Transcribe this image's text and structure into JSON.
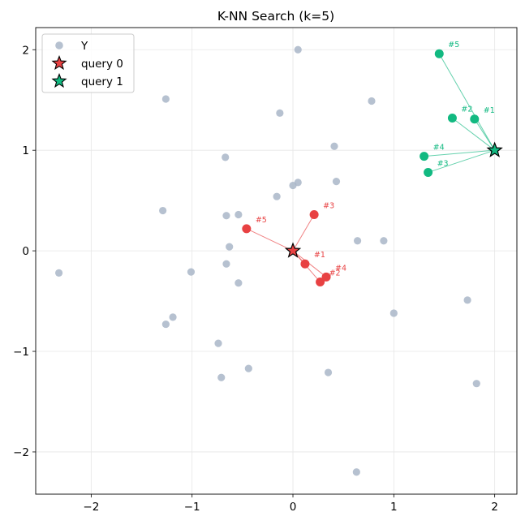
{
  "chart_data": {
    "type": "scatter",
    "title": "K-NN Search (k=5)",
    "xlabel": "",
    "ylabel": "",
    "xlim": [
      -2.55,
      2.22
    ],
    "ylim": [
      -2.42,
      2.22
    ],
    "xticks": [
      -2,
      -1,
      0,
      1,
      2
    ],
    "yticks": [
      -2,
      -1,
      0,
      1,
      2
    ],
    "xtick_labels": [
      "−2",
      "−1",
      "0",
      "1",
      "2"
    ],
    "ytick_labels": [
      "−2",
      "−1",
      "0",
      "1",
      "2"
    ],
    "grid": true,
    "legend_position": "top-left",
    "legend": [
      {
        "label": "Y",
        "marker": "circle",
        "color": "#a9b6c8"
      },
      {
        "label": "query 0",
        "marker": "star",
        "color": "#e84142"
      },
      {
        "label": "query 1",
        "marker": "star",
        "color": "#12b981"
      }
    ],
    "colors": {
      "Y": "#a9b6c8",
      "query0": "#e84142",
      "query1": "#12b981"
    },
    "points_Y": [
      [
        0.05,
        2.0
      ],
      [
        -1.26,
        1.51
      ],
      [
        0.78,
        1.49
      ],
      [
        -0.13,
        1.37
      ],
      [
        0.41,
        1.04
      ],
      [
        -0.67,
        0.93
      ],
      [
        0.43,
        0.69
      ],
      [
        0.05,
        0.68
      ],
      [
        0.0,
        0.65
      ],
      [
        -0.16,
        0.54
      ],
      [
        -1.29,
        0.4
      ],
      [
        -0.66,
        0.35
      ],
      [
        -0.54,
        0.36
      ],
      [
        -0.63,
        0.04
      ],
      [
        0.64,
        0.1
      ],
      [
        0.9,
        0.1
      ],
      [
        -2.32,
        -0.22
      ],
      [
        -1.01,
        -0.21
      ],
      [
        -0.66,
        -0.13
      ],
      [
        -0.54,
        -0.32
      ],
      [
        1.0,
        -0.62
      ],
      [
        1.73,
        -0.49
      ],
      [
        -1.19,
        -0.66
      ],
      [
        -1.26,
        -0.73
      ],
      [
        -0.74,
        -0.92
      ],
      [
        -0.44,
        -1.17
      ],
      [
        -0.71,
        -1.26
      ],
      [
        0.35,
        -1.21
      ],
      [
        1.82,
        -1.32
      ],
      [
        0.63,
        -2.2
      ]
    ],
    "queries": [
      {
        "name": "query 0",
        "point": [
          0.0,
          0.0
        ],
        "neighbors": [
          {
            "rank": "#1",
            "x": 0.12,
            "y": -0.13
          },
          {
            "rank": "#2",
            "x": 0.27,
            "y": -0.31
          },
          {
            "rank": "#3",
            "x": 0.21,
            "y": 0.36
          },
          {
            "rank": "#4",
            "x": 0.33,
            "y": -0.26
          },
          {
            "rank": "#5",
            "x": -0.46,
            "y": 0.22
          }
        ]
      },
      {
        "name": "query 1",
        "point": [
          2.0,
          1.0
        ],
        "neighbors": [
          {
            "rank": "#1",
            "x": 1.8,
            "y": 1.31
          },
          {
            "rank": "#2",
            "x": 1.58,
            "y": 1.32
          },
          {
            "rank": "#3",
            "x": 1.34,
            "y": 0.78
          },
          {
            "rank": "#4",
            "x": 1.3,
            "y": 0.94
          },
          {
            "rank": "#5",
            "x": 1.45,
            "y": 1.96
          }
        ]
      }
    ]
  }
}
